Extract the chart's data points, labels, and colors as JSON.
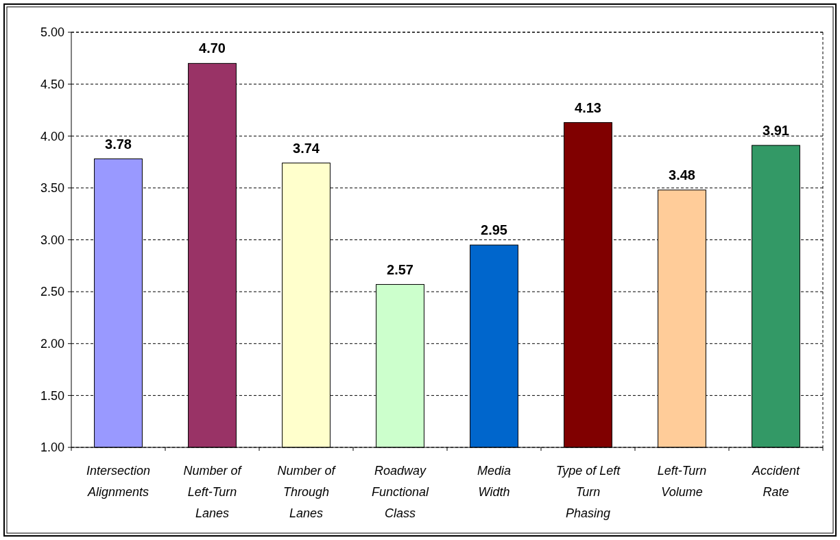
{
  "chart_data": {
    "type": "bar",
    "categories": [
      "Intersection\nAlignments",
      "Number of\nLeft-Turn\nLanes",
      "Number of\nThrough\nLanes",
      "Roadway\nFunctional\nClass",
      "Media\nWidth",
      "Type of Left\nTurn\nPhasing",
      "Left-Turn\nVolume",
      "Accident\nRate"
    ],
    "values": [
      3.78,
      4.7,
      3.74,
      2.57,
      2.95,
      4.13,
      3.48,
      3.91
    ],
    "colors": [
      "#9999ff",
      "#993366",
      "#ffffcc",
      "#ccffcc",
      "#0066cc",
      "#800000",
      "#ffcc99",
      "#339966"
    ],
    "ylim": [
      1,
      5
    ],
    "yticks": [
      {
        "value": 1,
        "label": "1.00"
      },
      {
        "value": 1.5,
        "label": "1.50"
      },
      {
        "value": 2,
        "label": "2.00"
      },
      {
        "value": 2.5,
        "label": "2.50"
      },
      {
        "value": 3,
        "label": "3.00"
      },
      {
        "value": 3.5,
        "label": "3.50"
      },
      {
        "value": 4,
        "label": "4.00"
      },
      {
        "value": 4.5,
        "label": "4.50"
      },
      {
        "value": 5,
        "label": "5.00"
      }
    ],
    "grid": "y",
    "value_labels": [
      "3.78",
      "4.70",
      "3.74",
      "2.57",
      "2.95",
      "4.13",
      "3.48",
      "3.91"
    ]
  }
}
